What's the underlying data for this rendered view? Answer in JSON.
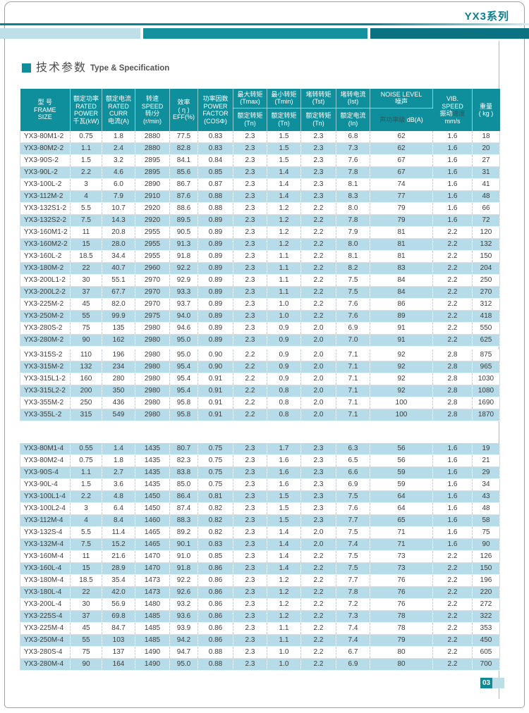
{
  "page": {
    "series_label": "YX3系列",
    "title_zh": "技术参数",
    "title_en": "Type & Specification",
    "page_number": "03"
  },
  "colors": {
    "header_teal": "#0f8f9b",
    "row_blue": "#b5dce8",
    "banner_light": "#bedfe7",
    "banner_teal": "#13929e",
    "banner_dark": "#0a7280",
    "series_text": "#0a7f8d"
  },
  "table": {
    "header": {
      "cols": [
        {
          "lines": [
            "型 号",
            "FRAME",
            "SIZE"
          ]
        },
        {
          "lines": [
            "额定功率",
            "RATED",
            "POWER",
            "千瓦(kW)"
          ]
        },
        {
          "lines": [
            "额定电流",
            "RATED",
            "CURR",
            "电流(A)"
          ]
        },
        {
          "lines": [
            "转速",
            "SPEED",
            "转/分",
            "(r/min)"
          ]
        },
        {
          "lines": [
            "效率",
            "( η )",
            "EFF(%)"
          ]
        },
        {
          "lines": [
            "功率因数",
            "POWER",
            "FACTOR",
            "(COSΦ)"
          ]
        },
        {
          "top": [
            "最大转矩",
            "(Tmax)"
          ],
          "bottom": [
            "额定转矩",
            "(Tn)"
          ]
        },
        {
          "top": [
            "最小转矩",
            "(Tmin)"
          ],
          "bottom": [
            "额定转矩",
            "(Tn)"
          ]
        },
        {
          "top": [
            "堵转转矩",
            "(Tst)"
          ],
          "bottom": [
            "额定转矩",
            "(Tn)"
          ]
        },
        {
          "top": [
            "堵转电流",
            "(Ist)"
          ],
          "bottom": [
            "额定电流",
            "(In)"
          ]
        },
        {
          "top": [
            "NOISE LEVEL",
            "噪声"
          ],
          "bottom": [
            {
              "parts": [
                {
                  "t": "声功率级 ",
                  "dim": true
                },
                {
                  "t": "dB(A)"
                }
              ]
            }
          ]
        },
        {
          "lines": [
            "VIB.",
            "SPEED",
            {
              "parts": [
                {
                  "t": "振动"
                },
                {
                  "t": "速度",
                  "dim": true
                }
              ]
            },
            "mm/s"
          ]
        },
        {
          "lines": [
            "重量",
            "( kg )"
          ]
        }
      ]
    },
    "sections": [
      {
        "start_shaded": false,
        "groups": [
          [
            [
              "YX3-80M1-2",
              "0.75",
              "1.8",
              "2880",
              "77.5",
              "0.83",
              "2.3",
              "1.5",
              "2.3",
              "6.8",
              "62",
              "1.6",
              "18"
            ],
            [
              "YX3-80M2-2",
              "1.1",
              "2.4",
              "2880",
              "82.8",
              "0.83",
              "2.3",
              "1.5",
              "2.3",
              "7.3",
              "62",
              "1.6",
              "20"
            ],
            [
              "YX3-90S-2",
              "1.5",
              "3.2",
              "2895",
              "84.1",
              "0.84",
              "2.3",
              "1.5",
              "2.3",
              "7.6",
              "67",
              "1.6",
              "27"
            ],
            [
              "YX3-90L-2",
              "2.2",
              "4.6",
              "2895",
              "85.6",
              "0.85",
              "2.3",
              "1.4",
              "2.3",
              "7.8",
              "67",
              "1.6",
              "31"
            ],
            [
              "YX3-100L-2",
              "3",
              "6.0",
              "2890",
              "86.7",
              "0.87",
              "2.3",
              "1.4",
              "2.3",
              "8.1",
              "74",
              "1.6",
              "41"
            ],
            [
              "YX3-112M-2",
              "4",
              "7.9",
              "2910",
              "87.6",
              "0.88",
              "2.3",
              "1.4",
              "2.3",
              "8.3",
              "77",
              "1.6",
              "48"
            ],
            [
              "YX3-132S1-2",
              "5.5",
              "10.7",
              "2920",
              "88.6",
              "0.88",
              "2.3",
              "1.2",
              "2.2",
              "8.0",
              "79",
              "1.6",
              "66"
            ],
            [
              "YX3-132S2-2",
              "7.5",
              "14.3",
              "2920",
              "89.5",
              "0.89",
              "2.3",
              "1.2",
              "2.2",
              "7.8",
              "79",
              "1.6",
              "72"
            ],
            [
              "YX3-160M1-2",
              "11",
              "20.8",
              "2955",
              "90.5",
              "0.89",
              "2.3",
              "1.2",
              "2.2",
              "7.9",
              "81",
              "2.2",
              "120"
            ],
            [
              "YX3-160M2-2",
              "15",
              "28.0",
              "2955",
              "91.3",
              "0.89",
              "2.3",
              "1.2",
              "2.2",
              "8.0",
              "81",
              "2.2",
              "132"
            ],
            [
              "YX3-160L-2",
              "18.5",
              "34.4",
              "2955",
              "91.8",
              "0.89",
              "2.3",
              "1.1",
              "2.2",
              "8.1",
              "81",
              "2.2",
              "150"
            ],
            [
              "YX3-180M-2",
              "22",
              "40.7",
              "2960",
              "92.2",
              "0.89",
              "2.3",
              "1.1",
              "2.2",
              "8.2",
              "83",
              "2.2",
              "204"
            ],
            [
              "YX3-200L1-2",
              "30",
              "55.1",
              "2970",
              "92.9",
              "0.89",
              "2.3",
              "1.1",
              "2.2",
              "7.5",
              "84",
              "2.2",
              "250"
            ],
            [
              "YX3-200L2-2",
              "37",
              "67.7",
              "2970",
              "93.3",
              "0.89",
              "2.3",
              "1.1",
              "2.2",
              "7.5",
              "84",
              "2.2",
              "270"
            ],
            [
              "YX3-225M-2",
              "45",
              "82.0",
              "2970",
              "93.7",
              "0.89",
              "2.3",
              "1.0",
              "2.2",
              "7.6",
              "86",
              "2.2",
              "312"
            ],
            [
              "YX3-250M-2",
              "55",
              "99.9",
              "2975",
              "94.0",
              "0.89",
              "2.3",
              "1.0",
              "2.2",
              "7.6",
              "89",
              "2.2",
              "418"
            ],
            [
              "YX3-280S-2",
              "75",
              "135",
              "2980",
              "94.6",
              "0.89",
              "2.3",
              "0.9",
              "2.0",
              "6.9",
              "91",
              "2.2",
              "550"
            ],
            [
              "YX3-280M-2",
              "90",
              "162",
              "2980",
              "95.0",
              "0.89",
              "2.3",
              "0.9",
              "2.0",
              "7.0",
              "91",
              "2.2",
              "625"
            ]
          ],
          [
            [
              "YX3-315S-2",
              "110",
              "196",
              "2980",
              "95.0",
              "0.90",
              "2.2",
              "0.9",
              "2.0",
              "7.1",
              "92",
              "2.8",
              "875"
            ],
            [
              "YX3-315M-2",
              "132",
              "234",
              "2980",
              "95.4",
              "0.90",
              "2.2",
              "0.9",
              "2.0",
              "7.1",
              "92",
              "2.8",
              "965"
            ],
            [
              "YX3-315L1-2",
              "160",
              "280",
              "2980",
              "95.4",
              "0.91",
              "2.2",
              "0.9",
              "2.0",
              "7.1",
              "92",
              "2.8",
              "1030"
            ],
            [
              "YX3-315L2-2",
              "200",
              "350",
              "2980",
              "95.4",
              "0.91",
              "2.2",
              "0.8",
              "2.0",
              "7.1",
              "92",
              "2.8",
              "1080"
            ],
            [
              "YX3-355M-2",
              "250",
              "436",
              "2980",
              "95.8",
              "0.91",
              "2.2",
              "0.8",
              "2.0",
              "7.1",
              "100",
              "2.8",
              "1690"
            ],
            [
              "YX3-355L-2",
              "315",
              "549",
              "2980",
              "95.8",
              "0.91",
              "2.2",
              "0.8",
              "2.0",
              "7.1",
              "100",
              "2.8",
              "1870"
            ]
          ]
        ]
      },
      {
        "start_shaded": true,
        "groups": [
          [
            [
              "YX3-80M1-4",
              "0.55",
              "1.4",
              "1435",
              "80.7",
              "0.75",
              "2.3",
              "1.7",
              "2.3",
              "6.3",
              "56",
              "1.6",
              "19"
            ],
            [
              "YX3-80M2-4",
              "0.75",
              "1.8",
              "1435",
              "82.3",
              "0.75",
              "2.3",
              "1.6",
              "2.3",
              "6.5",
              "56",
              "1.6",
              "21"
            ],
            [
              "YX3-90S-4",
              "1.1",
              "2.7",
              "1435",
              "83.8",
              "0.75",
              "2.3",
              "1.6",
              "2.3",
              "6.6",
              "59",
              "1.6",
              "29"
            ],
            [
              "YX3-90L-4",
              "1.5",
              "3.6",
              "1435",
              "85.0",
              "0.75",
              "2.3",
              "1.6",
              "2.3",
              "6.9",
              "59",
              "1.6",
              "34"
            ],
            [
              "YX3-100L1-4",
              "2.2",
              "4.8",
              "1450",
              "86.4",
              "0.81",
              "2.3",
              "1.5",
              "2.3",
              "7.5",
              "64",
              "1.6",
              "43"
            ],
            [
              "YX3-100L2-4",
              "3",
              "6.4",
              "1450",
              "87.4",
              "0.82",
              "2.3",
              "1.5",
              "2.3",
              "7.6",
              "64",
              "1.6",
              "48"
            ],
            [
              "YX3-112M-4",
              "4",
              "8.4",
              "1460",
              "88.3",
              "0.82",
              "2.3",
              "1.5",
              "2.3",
              "7.7",
              "65",
              "1.6",
              "58"
            ],
            [
              "YX3-132S-4",
              "5.5",
              "11.4",
              "1465",
              "89.2",
              "0.82",
              "2.3",
              "1.4",
              "2.0",
              "7.5",
              "71",
              "1.6",
              "75"
            ],
            [
              "YX3-132M-4",
              "7.5",
              "15.2",
              "1465",
              "90.1",
              "0.83",
              "2.3",
              "1.4",
              "2.0",
              "7.4",
              "71",
              "1.6",
              "90"
            ],
            [
              "YX3-160M-4",
              "11",
              "21.6",
              "1470",
              "91.0",
              "0.85",
              "2.3",
              "1.4",
              "2.2",
              "7.5",
              "73",
              "2.2",
              "126"
            ],
            [
              "YX3-160L-4",
              "15",
              "28.9",
              "1470",
              "91.8",
              "0.86",
              "2.3",
              "1.4",
              "2.2",
              "7.5",
              "73",
              "2.2",
              "150"
            ],
            [
              "YX3-180M-4",
              "18.5",
              "35.4",
              "1473",
              "92.2",
              "0.86",
              "2.3",
              "1.2",
              "2.2",
              "7.7",
              "76",
              "2.2",
              "196"
            ],
            [
              "YX3-180L-4",
              "22",
              "42.0",
              "1473",
              "92.6",
              "0.86",
              "2.3",
              "1.2",
              "2.2",
              "7.8",
              "76",
              "2.2",
              "220"
            ],
            [
              "YX3-200L-4",
              "30",
              "56.9",
              "1480",
              "93.2",
              "0.86",
              "2.3",
              "1.2",
              "2.2",
              "7.2",
              "76",
              "2.2",
              "272"
            ],
            [
              "YX3-225S-4",
              "37",
              "69.8",
              "1485",
              "93.6",
              "0.86",
              "2.3",
              "1.2",
              "2.2",
              "7.3",
              "78",
              "2.2",
              "322"
            ],
            [
              "YX3-225M-4",
              "45",
              "84.7",
              "1485",
              "93.9",
              "0.86",
              "2.3",
              "1.1",
              "2.2",
              "7.4",
              "78",
              "2.2",
              "353"
            ],
            [
              "YX3-250M-4",
              "55",
              "103",
              "1485",
              "94.2",
              "0.86",
              "2.3",
              "1.1",
              "2.2",
              "7.4",
              "79",
              "2.2",
              "450"
            ],
            [
              "YX3-280S-4",
              "75",
              "137",
              "1490",
              "94.7",
              "0.88",
              "2.3",
              "1.0",
              "2.2",
              "6.7",
              "80",
              "2.2",
              "605"
            ],
            [
              "YX3-280M-4",
              "90",
              "164",
              "1490",
              "95.0",
              "0.88",
              "2.3",
              "1.0",
              "2.2",
              "6.9",
              "80",
              "2.2",
              "700"
            ]
          ]
        ]
      }
    ]
  }
}
